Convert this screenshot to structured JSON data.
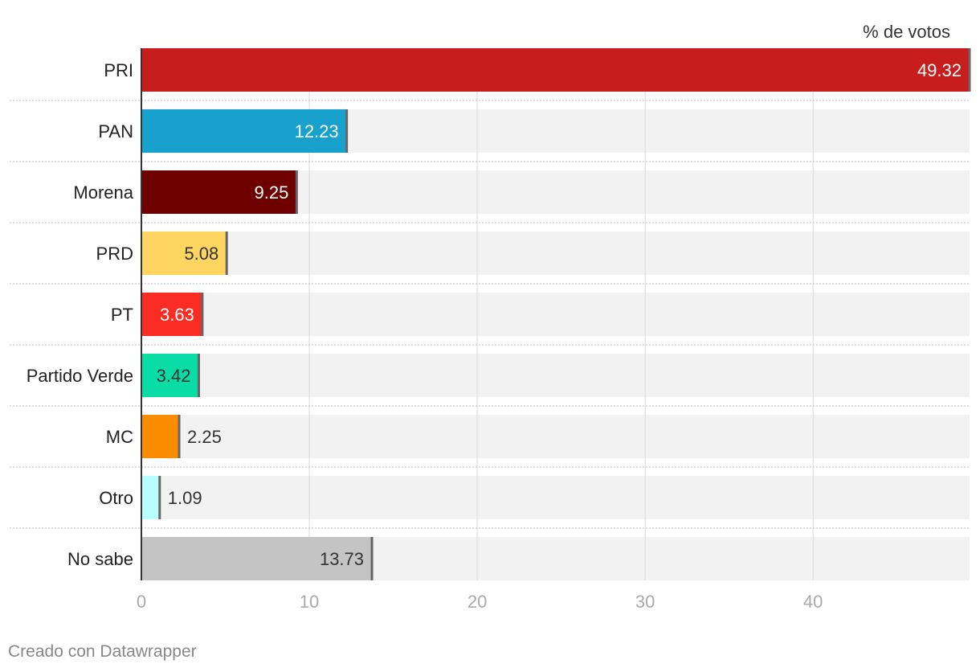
{
  "chart_data": {
    "type": "bar",
    "orientation": "horizontal",
    "value_header": "% de votos",
    "categories": [
      "PRI",
      "PAN",
      "Morena",
      "PRD",
      "PT",
      "Partido Verde",
      "MC",
      "Otro",
      "No sabe"
    ],
    "values": [
      49.32,
      12.23,
      9.25,
      5.08,
      3.63,
      3.42,
      2.25,
      1.09,
      13.73
    ],
    "value_labels": [
      "49.32",
      "12.23",
      "9.25",
      "5.08",
      "3.63",
      "3.42",
      "2.25",
      "1.09",
      "13.73"
    ],
    "colors": [
      "#c71e1d",
      "#18a1cd",
      "#6f0000",
      "#ffd562",
      "#fa2c24",
      "#09dda5",
      "#fa8c00",
      "#b8fefe",
      "#c4c4c4"
    ],
    "label_colors": [
      "#ffffff",
      "#ffffff",
      "#ffffff",
      "#333333",
      "#ffffff",
      "#333333",
      "#333333",
      "#333333",
      "#333333"
    ],
    "xlim": [
      0,
      49.32
    ],
    "xticks": [
      0,
      10,
      20,
      30,
      40
    ],
    "xtick_labels": [
      "0",
      "10",
      "20",
      "30",
      "40"
    ],
    "grid": true,
    "background_bar_color": "#f2f2f2"
  },
  "footer": {
    "credit": "Creado con Datawrapper"
  }
}
